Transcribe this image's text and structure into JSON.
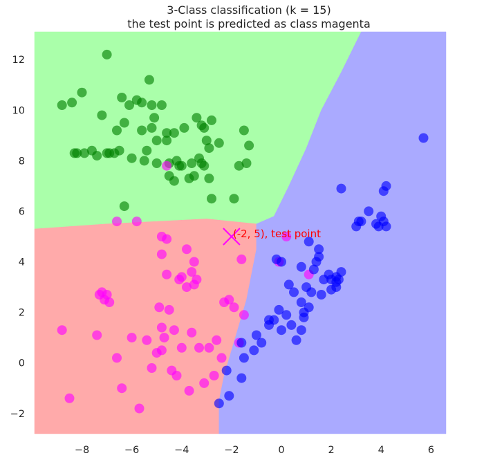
{
  "chart_data": {
    "type": "scatter",
    "title": "3-Class classification (k = 15)",
    "subtitle": "the test point is predicted as class magenta",
    "xlabel": "",
    "ylabel": "",
    "xlim": [
      -9.9,
      6.6
    ],
    "ylim": [
      -2.8,
      13.1
    ],
    "xticks": [
      -8,
      -6,
      -4,
      -2,
      0,
      2,
      4,
      6
    ],
    "yticks": [
      -2,
      0,
      2,
      4,
      6,
      8,
      10,
      12
    ],
    "xtick_labels": [
      "−8",
      "−6",
      "−4",
      "−2",
      "0",
      "2",
      "4",
      "6"
    ],
    "ytick_labels": [
      "−2",
      "0",
      "2",
      "4",
      "6",
      "8",
      "10",
      "12"
    ],
    "grid": false,
    "legend": "none",
    "regions": [
      {
        "class": "green",
        "color": "#aaffaa",
        "boundary": [
          [
            -9.9,
            13.1
          ],
          [
            3.2,
            13.1
          ],
          [
            2.4,
            11.5
          ],
          [
            1.6,
            10.0
          ],
          [
            1.0,
            8.5
          ],
          [
            0.3,
            7.0
          ],
          [
            -0.3,
            5.8
          ],
          [
            -1.0,
            5.5
          ],
          [
            -3.0,
            5.7
          ],
          [
            -5.0,
            5.6
          ],
          [
            -7.0,
            5.5
          ],
          [
            -9.9,
            5.3
          ]
        ]
      },
      {
        "class": "magenta",
        "color": "#ffaaaa",
        "boundary": [
          [
            -9.9,
            5.3
          ],
          [
            -7.0,
            5.5
          ],
          [
            -5.0,
            5.6
          ],
          [
            -3.0,
            5.7
          ],
          [
            -1.0,
            5.5
          ],
          [
            -1.0,
            4.5
          ],
          [
            -1.2,
            3.5
          ],
          [
            -1.4,
            2.5
          ],
          [
            -1.7,
            1.5
          ],
          [
            -2.0,
            0.5
          ],
          [
            -2.3,
            -0.5
          ],
          [
            -2.5,
            -1.5
          ],
          [
            -2.5,
            -2.8
          ],
          [
            -9.9,
            -2.8
          ]
        ]
      },
      {
        "class": "blue",
        "color": "#aaaaff",
        "boundary": [
          [
            -0.3,
            5.8
          ],
          [
            0.3,
            7.0
          ],
          [
            1.0,
            8.5
          ],
          [
            1.6,
            10.0
          ],
          [
            2.4,
            11.5
          ],
          [
            3.2,
            13.1
          ],
          [
            6.6,
            13.1
          ],
          [
            6.6,
            -2.8
          ],
          [
            -2.5,
            -2.8
          ],
          [
            -2.5,
            -1.5
          ],
          [
            -2.3,
            -0.5
          ],
          [
            -2.0,
            0.5
          ],
          [
            -1.7,
            1.5
          ],
          [
            -1.4,
            2.5
          ],
          [
            -1.2,
            3.5
          ],
          [
            -1.0,
            4.5
          ],
          [
            -1.0,
            5.5
          ]
        ]
      }
    ],
    "series": [
      {
        "color": "#008000",
        "x": [
          -7.0,
          -8.8,
          -8.4,
          -8.0,
          -6.4,
          -6.1,
          -5.8,
          -5.6,
          -5.3,
          -5.2,
          -4.8,
          -7.2,
          -6.6,
          -6.3,
          -5.6,
          -5.1,
          -4.6,
          -4.3,
          -3.9,
          -3.4,
          -3.1,
          -2.8,
          -7.9,
          -7.6,
          -6.9,
          -6.5,
          -5.4,
          -5.0,
          -4.6,
          -4.2,
          -3.7,
          -3.5,
          -3.2,
          -2.9,
          -8.2,
          -8.3,
          -7.4,
          -7.0,
          -6.7,
          -6.0,
          -5.5,
          -5.0,
          -4.5,
          -4.1,
          -3.6,
          -3.1,
          -2.9,
          -1.3,
          -1.4,
          -1.7,
          -1.9,
          -1.5,
          -6.3,
          -4.0,
          -4.3,
          -4.5,
          -3.3,
          -3.0,
          -3.2,
          -2.5,
          -2.8,
          -5.2
        ],
        "y": [
          12.2,
          10.2,
          10.3,
          10.7,
          10.5,
          10.2,
          10.4,
          10.3,
          11.2,
          9.3,
          10.2,
          9.8,
          9.2,
          9.5,
          9.2,
          9.7,
          9.1,
          9.1,
          9.3,
          9.7,
          9.3,
          9.6,
          8.3,
          8.4,
          8.3,
          8.4,
          8.4,
          8.8,
          8.8,
          8.0,
          7.3,
          7.4,
          7.9,
          8.5,
          8.3,
          8.3,
          8.2,
          8.3,
          8.3,
          8.1,
          8.0,
          7.9,
          7.9,
          7.8,
          7.9,
          7.8,
          7.3,
          8.6,
          7.9,
          7.8,
          6.5,
          9.2,
          6.2,
          7.8,
          7.2,
          7.4,
          8.1,
          8.8,
          9.4,
          8.7,
          6.5,
          10.2
        ]
      },
      {
        "color": "#ff00ff",
        "x": [
          -6.6,
          -5.8,
          -4.8,
          -4.6,
          -3.8,
          -3.6,
          -3.5,
          -3.4,
          -3.8,
          -3.5,
          -4.8,
          -4.6,
          -4.1,
          -4.0,
          -4.9,
          -4.5,
          -4.8,
          -7.3,
          -7.1,
          -7.2,
          -7.0,
          -6.9,
          -8.8,
          -7.4,
          -6.6,
          -6.0,
          -5.4,
          -5.0,
          -4.7,
          -4.3,
          -4.0,
          -3.6,
          -3.3,
          -2.9,
          -2.6,
          -2.3,
          -2.1,
          -1.9,
          -1.7,
          -1.5,
          -2.4,
          -8.5,
          -6.4,
          -5.7,
          -4.4,
          -4.2,
          -3.7,
          -3.1,
          -2.7,
          -4.8,
          -5.2,
          -1.6,
          -0.1,
          0.2,
          1.1
        ],
        "y": [
          5.6,
          5.6,
          4.3,
          3.5,
          4.5,
          3.6,
          4.0,
          3.3,
          3.0,
          3.1,
          5.0,
          4.9,
          3.3,
          3.4,
          2.2,
          2.1,
          1.4,
          2.7,
          2.5,
          2.8,
          2.7,
          2.4,
          1.3,
          1.1,
          0.2,
          1.0,
          0.9,
          0.4,
          1.0,
          1.3,
          0.6,
          1.2,
          0.6,
          0.6,
          0.9,
          2.4,
          2.5,
          2.2,
          0.8,
          1.9,
          0.2,
          -1.4,
          -1.0,
          -1.8,
          -0.3,
          -0.5,
          -1.1,
          -0.8,
          -0.5,
          0.5,
          -0.2,
          4.1,
          4.0,
          5.0,
          3.5
        ],
        "x_extra": [
          -4.6
        ],
        "y_extra": [
          7.8
        ]
      },
      {
        "color": "#0000ff",
        "x": [
          5.7,
          4.2,
          4.1,
          3.5,
          3.2,
          3.8,
          4.2,
          4.0,
          3.0,
          3.1,
          2.4,
          2.3,
          2.2,
          2.0,
          1.7,
          1.5,
          1.4,
          1.1,
          1.0,
          0.8,
          0.5,
          0.3,
          0.0,
          -0.3,
          -0.5,
          -0.8,
          -1.1,
          -1.6,
          -2.2,
          -2.5,
          -2.1,
          -1.6,
          -1.5,
          -1.0,
          -0.5,
          -0.1,
          0.2,
          0.6,
          0.8,
          0.9,
          1.2,
          1.3,
          1.5,
          1.9,
          2.0,
          2.4,
          1.6,
          1.1,
          0.9,
          0.8,
          0.4,
          2.2,
          2.2,
          3.9,
          4.1,
          0.0,
          -0.2
        ],
        "y": [
          8.9,
          7.0,
          6.8,
          6.0,
          5.6,
          5.5,
          5.4,
          5.8,
          5.4,
          5.6,
          6.9,
          3.3,
          3.4,
          2.9,
          3.3,
          4.5,
          4.0,
          4.8,
          3.0,
          3.8,
          2.8,
          3.1,
          1.3,
          1.7,
          1.5,
          0.8,
          0.5,
          0.8,
          -0.3,
          -1.6,
          -1.3,
          -0.6,
          0.2,
          1.1,
          1.7,
          2.1,
          1.9,
          0.9,
          2.4,
          2.0,
          2.8,
          3.7,
          4.2,
          3.5,
          3.3,
          3.6,
          2.7,
          2.2,
          1.8,
          1.3,
          1.5,
          3.0,
          3.2,
          5.4,
          5.6,
          4.0,
          4.1
        ]
      }
    ],
    "test_point": {
      "x": -2,
      "y": 5,
      "marker": "x",
      "color": "#ff00ff",
      "label": "(-2, 5), test point",
      "label_color": "#ff0000"
    }
  }
}
